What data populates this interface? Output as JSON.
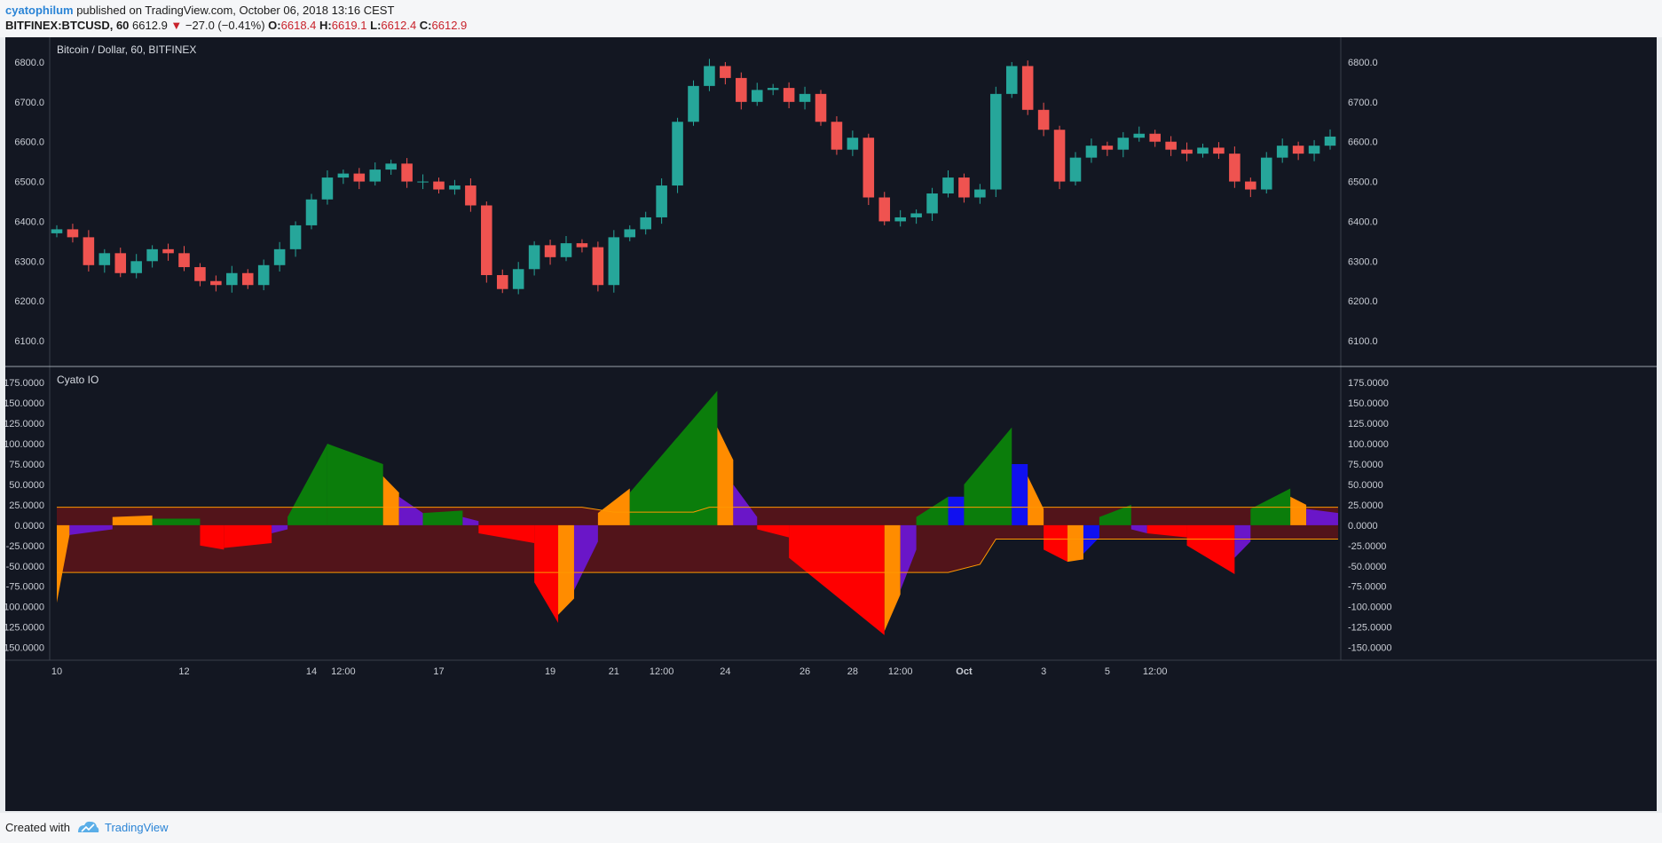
{
  "header": {
    "author": "cyatophilum",
    "published_text": "published on TradingView.com, October 06, 2018 13:16 CEST",
    "symbol": "BITFINEX:BTCUSD, 60",
    "last": "6612.9",
    "change": "−27.0 (−0.41%)",
    "open_label": "O:",
    "open": "6618.4",
    "high_label": "H:",
    "high": "6619.1",
    "low_label": "L:",
    "low": "6612.4",
    "close_label": "C:",
    "close": "6612.9"
  },
  "footer": {
    "created_with": "Created with",
    "brand": "TradingView"
  },
  "colors": {
    "background": "#131722",
    "up": "#26a69a",
    "down": "#ef5350",
    "green": "#0b7d0b",
    "red": "#fe0000",
    "orange": "#ff8c00",
    "blue": "#1010f0",
    "purple": "#6a16c8",
    "band": "#5a1419",
    "band_line": "#ff9800"
  },
  "chart_data": [
    {
      "type": "candlestick",
      "title": "Bitcoin / Dollar, 60, BITFINEX",
      "ylim": [
        6060,
        6840
      ],
      "yticks": [
        "6800.0",
        "6700.0",
        "6600.0",
        "6500.0",
        "6400.0",
        "6300.0",
        "6200.0",
        "6100.0"
      ],
      "ytick_values": [
        6800,
        6700,
        6600,
        6500,
        6400,
        6300,
        6200,
        6100
      ],
      "xticks": [
        "10",
        "12",
        "14",
        "12:00",
        "17",
        "19",
        "21",
        "12:00",
        "24",
        "26",
        "28",
        "12:00",
        "Oct",
        "3",
        "5",
        "12:00"
      ],
      "bold_xticks": [
        "Oct"
      ],
      "x_index": [
        0,
        8,
        16,
        18,
        24,
        31,
        35,
        38,
        42,
        47,
        50,
        53,
        57,
        62,
        66,
        69
      ],
      "closes": [
        6380,
        6360,
        6290,
        6320,
        6270,
        6300,
        6330,
        6320,
        6285,
        6250,
        6240,
        6270,
        6240,
        6290,
        6330,
        6390,
        6455,
        6510,
        6520,
        6500,
        6530,
        6545,
        6500,
        6500,
        6480,
        6490,
        6440,
        6265,
        6230,
        6280,
        6340,
        6310,
        6345,
        6335,
        6240,
        6360,
        6380,
        6410,
        6490,
        6650,
        6740,
        6790,
        6760,
        6700,
        6730,
        6735,
        6700,
        6720,
        6650,
        6580,
        6610,
        6460,
        6400,
        6410,
        6420,
        6470,
        6510,
        6460,
        6480,
        6720,
        6790,
        6680,
        6630,
        6500,
        6560,
        6590,
        6580,
        6610,
        6620,
        6600,
        6580,
        6570,
        6585,
        6570,
        6500,
        6480,
        6560,
        6590,
        6570,
        6590,
        6612.9
      ]
    },
    {
      "type": "histogram",
      "title": "Cyato IO",
      "ylim": [
        -157,
        185
      ],
      "yticks": [
        "175.0000",
        "150.0000",
        "125.0000",
        "100.0000",
        "75.0000",
        "50.0000",
        "25.0000",
        "0.0000",
        "-25.0000",
        "-50.0000",
        "-75.0000",
        "-100.0000",
        "-125.0000",
        "-150.0000"
      ],
      "ytick_values": [
        175,
        150,
        125,
        100,
        75,
        50,
        25,
        0,
        -25,
        -50,
        -75,
        -100,
        -125,
        -150
      ],
      "segments": [
        {
          "x0": 0,
          "x1": 0.8,
          "v0": -95,
          "v1": -12,
          "color": "orange"
        },
        {
          "x0": 0.8,
          "x1": 3.5,
          "v0": -12,
          "v1": -5,
          "color": "purple"
        },
        {
          "x0": 3.5,
          "x1": 6.0,
          "v0": 10,
          "v1": 12,
          "color": "orange"
        },
        {
          "x0": 6.0,
          "x1": 9.0,
          "v0": 8,
          "v1": 8,
          "color": "green"
        },
        {
          "x0": 9.0,
          "x1": 10.5,
          "v0": -25,
          "v1": -30,
          "color": "red"
        },
        {
          "x0": 10.5,
          "x1": 13.5,
          "v0": -28,
          "v1": -22,
          "color": "red"
        },
        {
          "x0": 13.5,
          "x1": 14.5,
          "v0": -10,
          "v1": -5,
          "color": "purple"
        },
        {
          "x0": 14.5,
          "x1": 17.0,
          "v0": 10,
          "v1": 100,
          "color": "green"
        },
        {
          "x0": 17.0,
          "x1": 20.5,
          "v0": 100,
          "v1": 75,
          "color": "green"
        },
        {
          "x0": 20.5,
          "x1": 21.5,
          "v0": 60,
          "v1": 40,
          "color": "orange"
        },
        {
          "x0": 21.5,
          "x1": 23.0,
          "v0": 35,
          "v1": 15,
          "color": "purple"
        },
        {
          "x0": 23.0,
          "x1": 25.5,
          "v0": 15,
          "v1": 18,
          "color": "green"
        },
        {
          "x0": 25.5,
          "x1": 26.5,
          "v0": 10,
          "v1": 5,
          "color": "purple"
        },
        {
          "x0": 26.5,
          "x1": 30.0,
          "v0": -10,
          "v1": -22,
          "color": "red"
        },
        {
          "x0": 30.0,
          "x1": 31.5,
          "v0": -70,
          "v1": -120,
          "color": "red"
        },
        {
          "x0": 31.5,
          "x1": 32.5,
          "v0": -110,
          "v1": -90,
          "color": "orange"
        },
        {
          "x0": 32.5,
          "x1": 34.0,
          "v0": -80,
          "v1": -20,
          "color": "purple"
        },
        {
          "x0": 34.0,
          "x1": 36.0,
          "v0": 15,
          "v1": 45,
          "color": "orange"
        },
        {
          "x0": 36.0,
          "x1": 41.5,
          "v0": 40,
          "v1": 165,
          "color": "green"
        },
        {
          "x0": 41.5,
          "x1": 42.5,
          "v0": 120,
          "v1": 80,
          "color": "orange"
        },
        {
          "x0": 42.5,
          "x1": 44.0,
          "v0": 50,
          "v1": 10,
          "color": "purple"
        },
        {
          "x0": 44.0,
          "x1": 46.0,
          "v0": -5,
          "v1": -15,
          "color": "red"
        },
        {
          "x0": 46.0,
          "x1": 52.0,
          "v0": -40,
          "v1": -135,
          "color": "red"
        },
        {
          "x0": 52.0,
          "x1": 53.0,
          "v0": -130,
          "v1": -85,
          "color": "orange"
        },
        {
          "x0": 53.0,
          "x1": 54.0,
          "v0": -80,
          "v1": -30,
          "color": "purple"
        },
        {
          "x0": 54.0,
          "x1": 56.0,
          "v0": 10,
          "v1": 35,
          "color": "green"
        },
        {
          "x0": 56.0,
          "x1": 57.0,
          "v0": 35,
          "v1": 35,
          "color": "blue"
        },
        {
          "x0": 57.0,
          "x1": 60.0,
          "v0": 50,
          "v1": 120,
          "color": "green"
        },
        {
          "x0": 60.0,
          "x1": 61.0,
          "v0": 75,
          "v1": 75,
          "color": "blue"
        },
        {
          "x0": 61.0,
          "x1": 62.0,
          "v0": 60,
          "v1": 20,
          "color": "orange"
        },
        {
          "x0": 62.0,
          "x1": 63.5,
          "v0": -30,
          "v1": -45,
          "color": "red"
        },
        {
          "x0": 63.5,
          "x1": 64.5,
          "v0": -45,
          "v1": -42,
          "color": "orange"
        },
        {
          "x0": 64.5,
          "x1": 65.5,
          "v0": -35,
          "v1": -15,
          "color": "blue"
        },
        {
          "x0": 65.5,
          "x1": 67.5,
          "v0": 10,
          "v1": 25,
          "color": "green"
        },
        {
          "x0": 67.5,
          "x1": 68.5,
          "v0": -5,
          "v1": -10,
          "color": "purple"
        },
        {
          "x0": 68.5,
          "x1": 71.0,
          "v0": -10,
          "v1": -15,
          "color": "red"
        },
        {
          "x0": 71.0,
          "x1": 74.0,
          "v0": -25,
          "v1": -60,
          "color": "red"
        },
        {
          "x0": 74.0,
          "x1": 75.0,
          "v0": -40,
          "v1": -20,
          "color": "purple"
        },
        {
          "x0": 75.0,
          "x1": 77.5,
          "v0": 20,
          "v1": 45,
          "color": "green"
        },
        {
          "x0": 77.5,
          "x1": 78.5,
          "v0": 35,
          "v1": 25,
          "color": "orange"
        },
        {
          "x0": 78.5,
          "x1": 80.5,
          "v0": 20,
          "v1": 15,
          "color": "purple"
        }
      ],
      "upper_band": [
        [
          0,
          22
        ],
        [
          33,
          22
        ],
        [
          35,
          16
        ],
        [
          40,
          16
        ],
        [
          41,
          22
        ],
        [
          80.5,
          22
        ]
      ],
      "lower_band": [
        [
          0,
          -58
        ],
        [
          56,
          -58
        ],
        [
          58,
          -48
        ],
        [
          59,
          -17
        ],
        [
          80.5,
          -17
        ]
      ]
    }
  ]
}
